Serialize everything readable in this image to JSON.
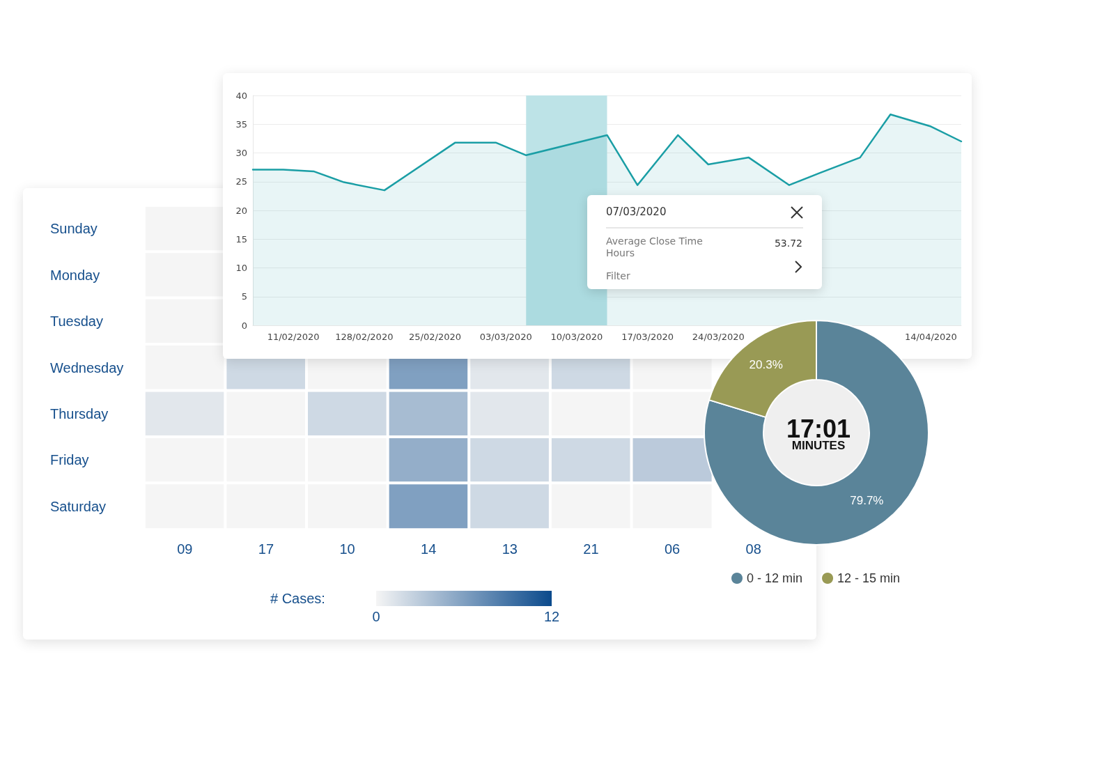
{
  "chart_data": [
    {
      "type": "area",
      "x": [
        "2020-02-07",
        "2020-02-10",
        "2020-02-13",
        "2020-02-16",
        "2020-02-20",
        "2020-02-27",
        "2020-03-02",
        "2020-03-05",
        "2020-03-13",
        "2020-03-16",
        "2020-03-20",
        "2020-03-23",
        "2020-03-27",
        "2020-03-31",
        "2020-04-03",
        "2020-04-07",
        "2020-04-10",
        "2020-04-14",
        "2020-04-17"
      ],
      "series": [
        {
          "color": "#1a9ea5",
          "values": [
            27.1,
            27.1,
            26.8,
            24.9,
            23.5,
            31.8,
            31.8,
            29.6,
            33.1,
            24.4,
            33.1,
            28.0,
            29.2,
            24.4,
            26.5,
            29.2,
            36.7,
            34.6,
            32.0
          ]
        }
      ],
      "xlim": [
        "2020-02-07",
        "2020-04-17"
      ],
      "xticks": [
        {
          "value": "2020-02-11",
          "label": "11/02/2020"
        },
        {
          "value": "2020-02-18",
          "label": "128/02/2020"
        },
        {
          "value": "2020-02-25",
          "label": "25/02/2020"
        },
        {
          "value": "2020-03-03",
          "label": "03/03/2020"
        },
        {
          "value": "2020-03-10",
          "label": "10/03/2020"
        },
        {
          "value": "2020-03-17",
          "label": "17/03/2020"
        },
        {
          "value": "2020-03-24",
          "label": "24/03/2020"
        },
        {
          "value": "2020-04-14",
          "label": "14/04/2020"
        }
      ],
      "ylim": [
        0,
        40
      ],
      "yticks": [
        0,
        5,
        10,
        15,
        20,
        25,
        30,
        35,
        40
      ],
      "grid": "y",
      "marker": "none",
      "bands": [
        {
          "axis": "x",
          "from": "2020-03-05",
          "to": "2020-03-13",
          "color": "#bde3e7"
        }
      ],
      "annotations": [
        "07/03/2020",
        "Average Close Time Hours",
        "53.72",
        "Filter"
      ]
    },
    {
      "type": "heatmap",
      "categories": [
        "09",
        "17",
        "10",
        "14",
        "13",
        "21",
        "06",
        "08"
      ],
      "y_categories": [
        "Sunday",
        "Monday",
        "Tuesday",
        "Wednesday",
        "Thursday",
        "Friday",
        "Saturday"
      ],
      "cells": [
        [
          0,
          null,
          null,
          null,
          null,
          null,
          null,
          null
        ],
        [
          0,
          null,
          null,
          null,
          null,
          null,
          null,
          null
        ],
        [
          0,
          null,
          null,
          null,
          null,
          null,
          null,
          null
        ],
        [
          0,
          2,
          0,
          6,
          1,
          2,
          0,
          null
        ],
        [
          1,
          0,
          2,
          4,
          1,
          0,
          0,
          null
        ],
        [
          0,
          0,
          0,
          5,
          2,
          2,
          3,
          null
        ],
        [
          0,
          0,
          0,
          6,
          2,
          0,
          0,
          null
        ]
      ],
      "clim": [
        0,
        12
      ],
      "cticks": [
        0,
        12
      ],
      "clabel": "# Cases:"
    },
    {
      "type": "donut",
      "categories": [
        "0 - 12 min",
        "12 - 15 min"
      ],
      "values": [
        79.7,
        20.3
      ],
      "colors": [
        "#5a8499",
        "#999a55"
      ],
      "value_labels": [
        "79.7%",
        "20.3%"
      ],
      "legend": "bottom",
      "annotations": [
        "17:01",
        "MINUTES"
      ]
    }
  ]
}
